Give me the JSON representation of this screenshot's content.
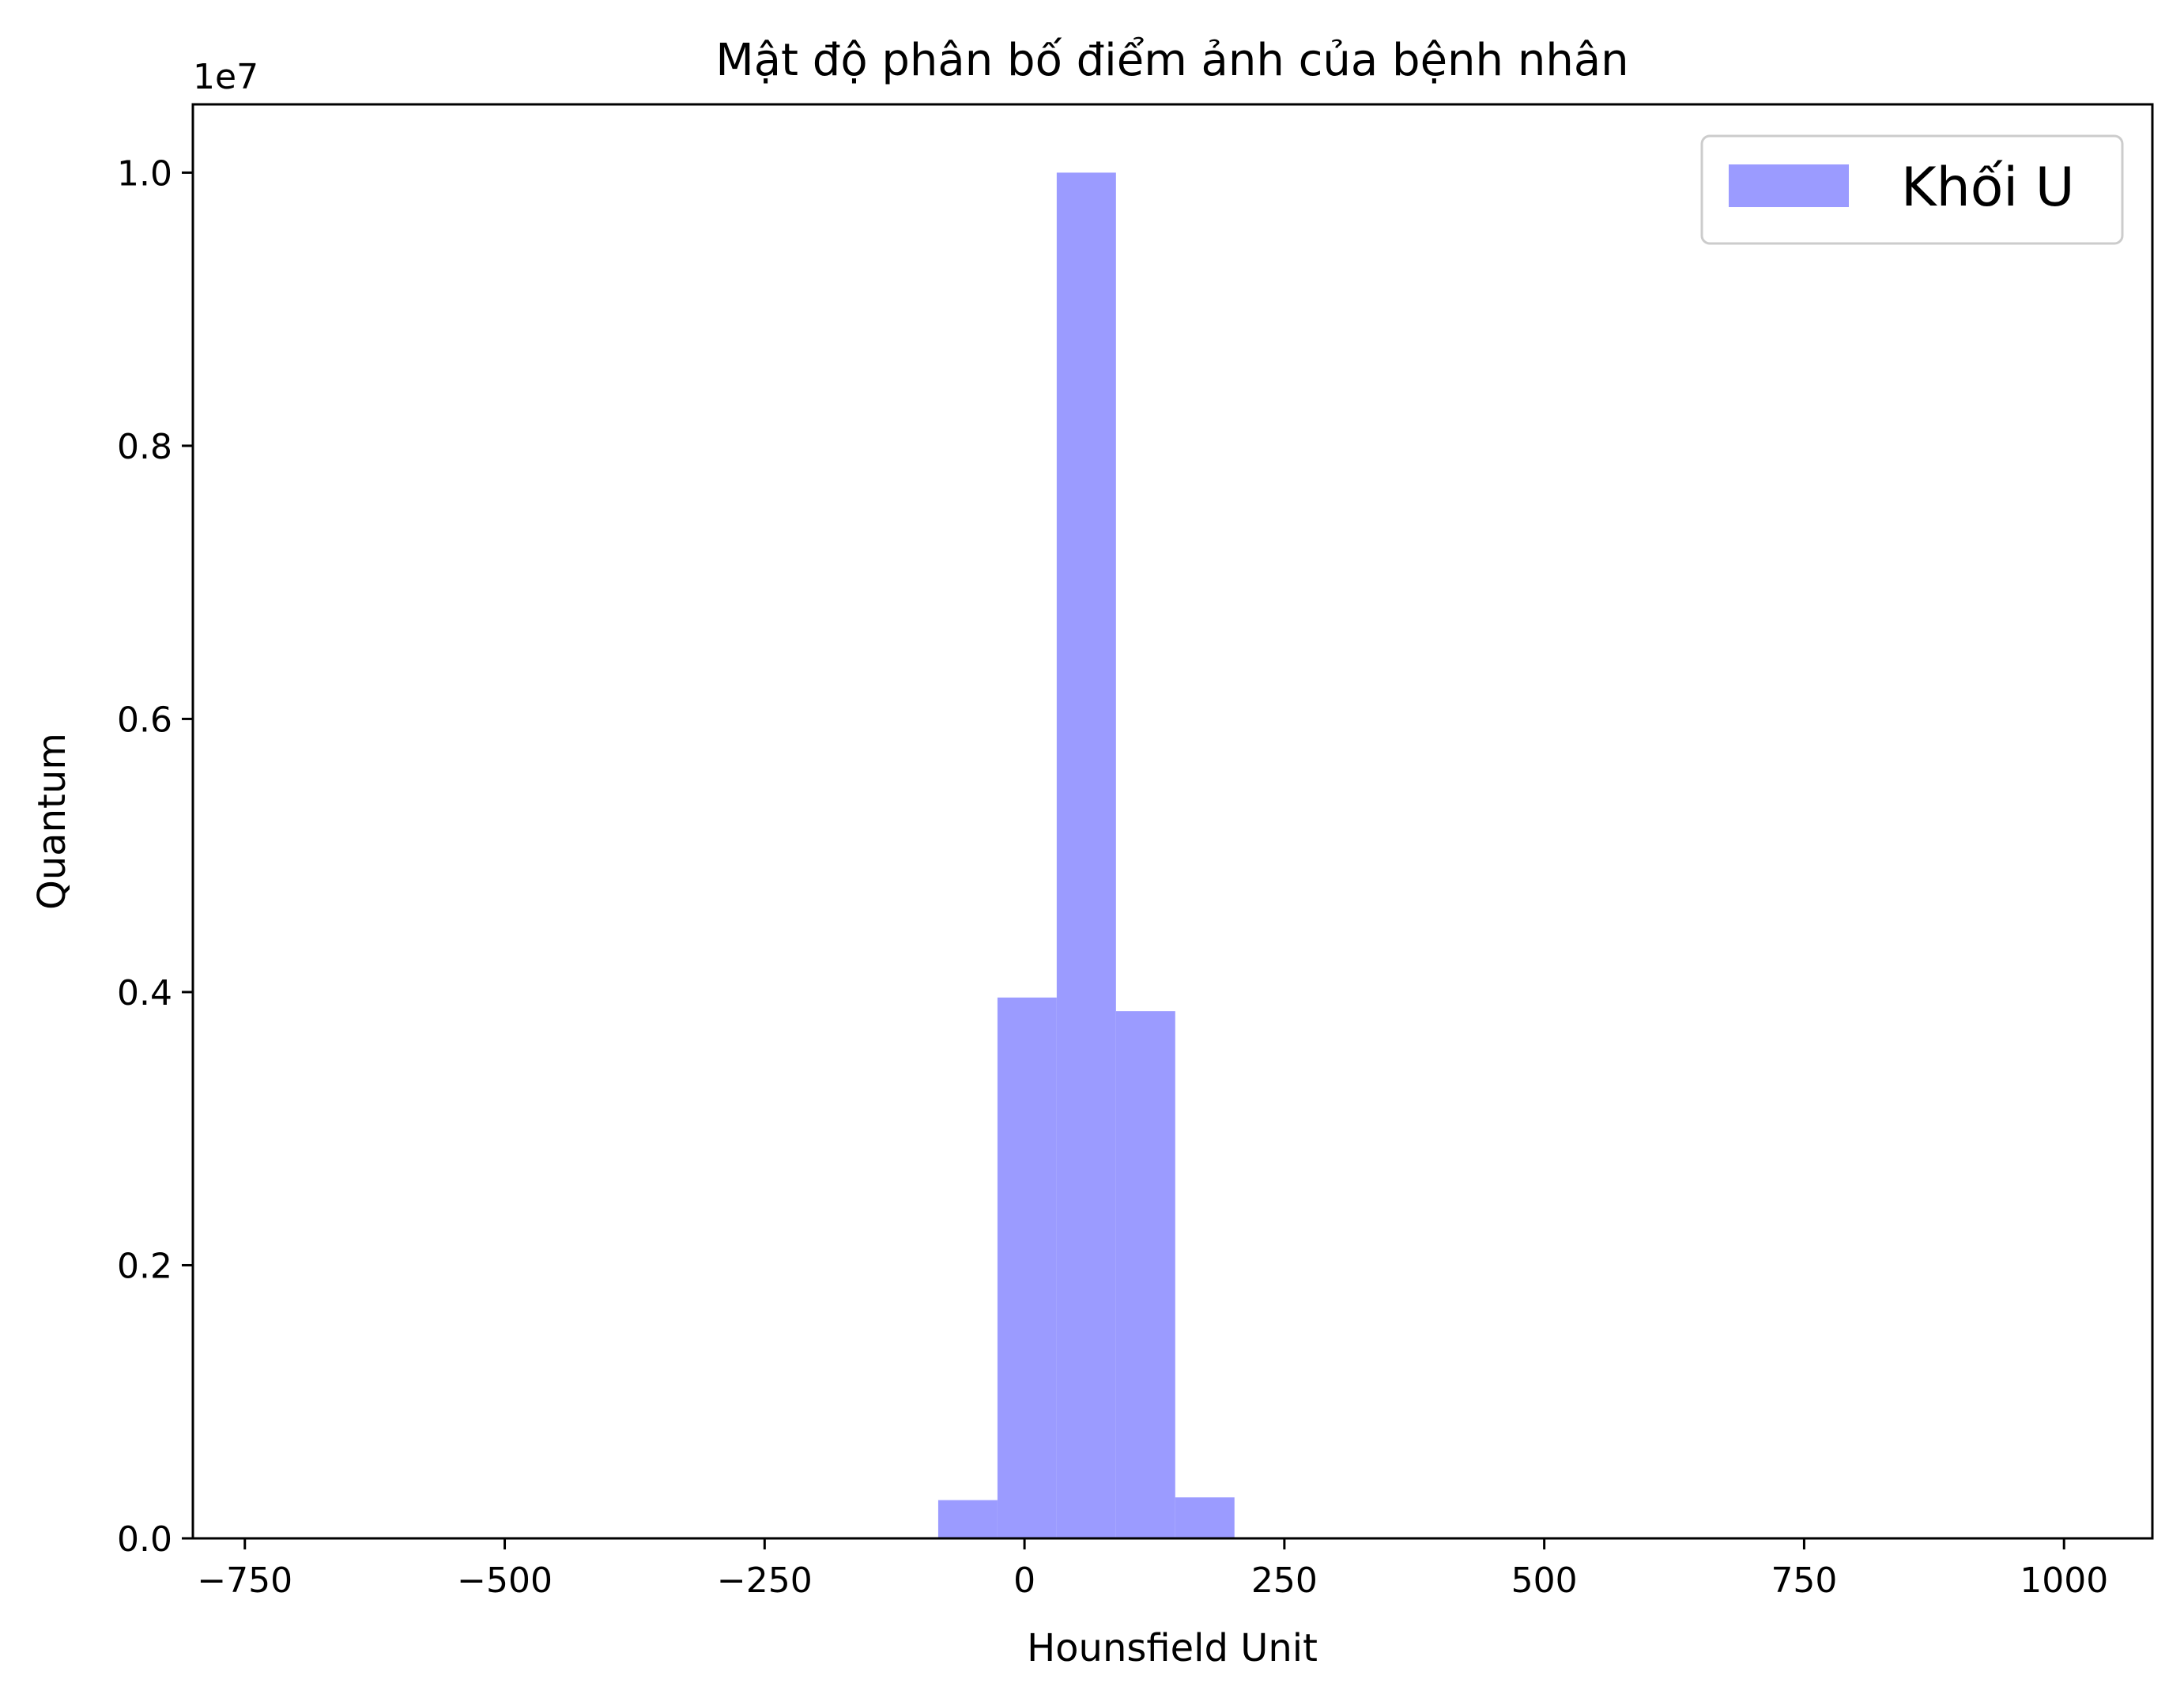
{
  "chart_data": {
    "type": "bar",
    "title": "Mật độ phân bố điểm ảnh của bệnh nhân",
    "xlabel": "Hounsfield Unit",
    "ylabel": "Quantum",
    "y_offset_text": "1e7",
    "xlim": [
      -800,
      1085
    ],
    "ylim": [
      0,
      1.05
    ],
    "y_scale_factor": 10000000,
    "x_ticks": [
      -750,
      -500,
      -250,
      0,
      250,
      500,
      750,
      1000
    ],
    "x_tick_labels": [
      "−750",
      "−500",
      "−250",
      "0",
      "250",
      "500",
      "750",
      "1000"
    ],
    "y_ticks": [
      0.0,
      0.2,
      0.4,
      0.6,
      0.8,
      1.0
    ],
    "y_tick_labels": [
      "0.0",
      "0.2",
      "0.4",
      "0.6",
      "0.8",
      "1.0"
    ],
    "grid": false,
    "legend_position": "top-right",
    "series": [
      {
        "name": "Khối U",
        "color": "#9b9bff",
        "bins": [
          {
            "x0": -83,
            "x1": -26,
            "value": 0.028
          },
          {
            "x0": -26,
            "x1": 31,
            "value": 0.396
          },
          {
            "x0": 31,
            "x1": 88,
            "value": 1.0
          },
          {
            "x0": 88,
            "x1": 145,
            "value": 0.386
          },
          {
            "x0": 145,
            "x1": 202,
            "value": 0.03
          }
        ]
      }
    ]
  }
}
